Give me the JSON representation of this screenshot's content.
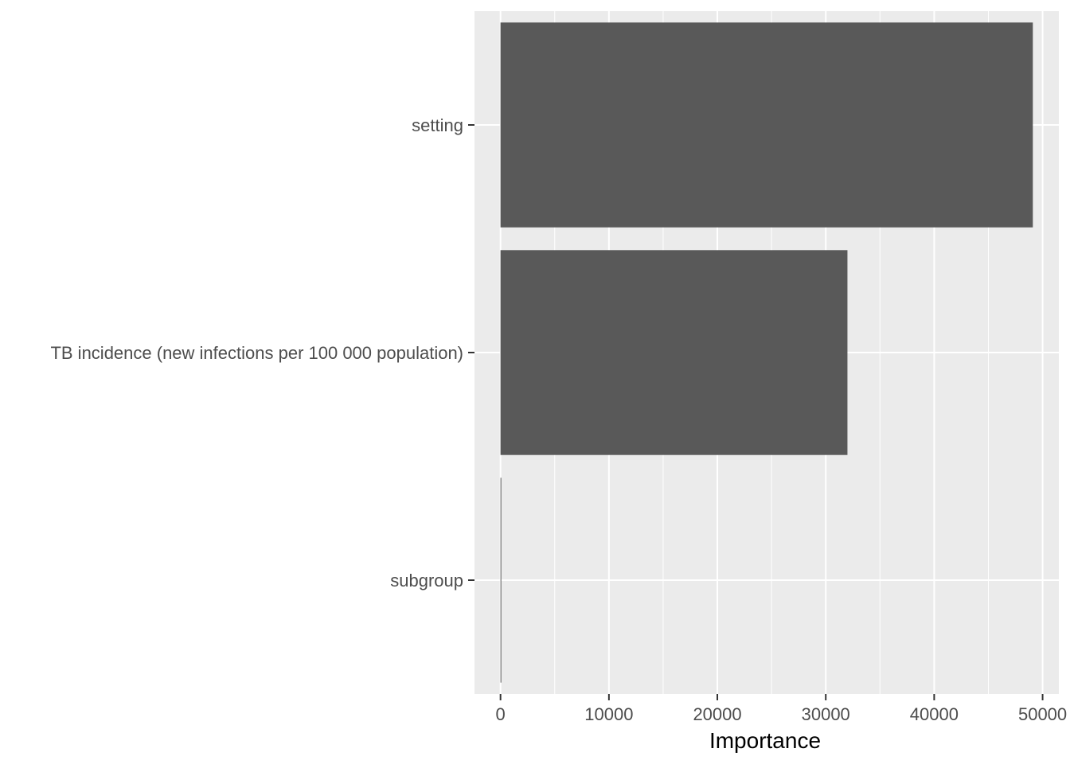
{
  "chart_data": {
    "type": "bar",
    "orientation": "horizontal",
    "categories": [
      "setting",
      "TB incidence (new infections per 100 000 population)",
      "subgroup"
    ],
    "values": [
      49100,
      32000,
      40
    ],
    "xlabel": "Importance",
    "ylabel": "",
    "xlim": [
      -2400,
      51500
    ],
    "x_ticks": [
      0,
      10000,
      20000,
      30000,
      40000,
      50000
    ],
    "x_tick_labels": [
      "0",
      "10000",
      "20000",
      "30000",
      "40000",
      "50000"
    ],
    "grid": true,
    "colors": {
      "panel": "#ebebeb",
      "grid": "#ffffff",
      "bar": "#595959",
      "tick_text": "#4d4d4d",
      "axis_title": "#000000"
    }
  }
}
